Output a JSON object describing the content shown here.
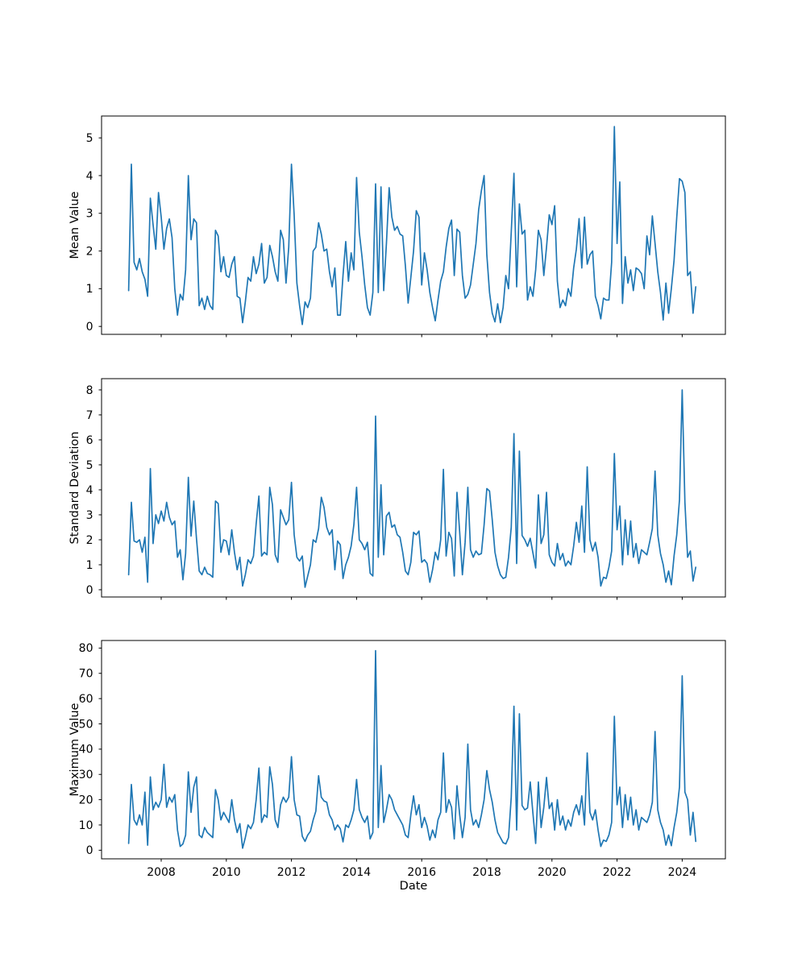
{
  "figure": {
    "background": "#ffffff",
    "line_color": "#1f77b4",
    "axis_color": "#000000",
    "xlabel": "Date"
  },
  "chart_data": [
    {
      "type": "line",
      "id": "mean-value",
      "ylabel": "Mean Value",
      "xlabel": "",
      "legend": "none",
      "grid": false,
      "x_start_year": 2007.0,
      "x_step_years": 0.0833333,
      "xlim_years": [
        2006.168,
        2025.327
      ],
      "ylim": [
        -0.21,
        5.58
      ],
      "y_ticks": [
        0,
        1,
        2,
        3,
        4,
        5
      ],
      "x_tick_years": [
        2008,
        2010,
        2012,
        2014,
        2016,
        2018,
        2020,
        2022,
        2024
      ],
      "show_x_tick_labels": false,
      "values": [
        0.95,
        4.3,
        1.7,
        1.5,
        1.8,
        1.45,
        1.25,
        0.8,
        3.4,
        2.7,
        2.05,
        3.55,
        2.9,
        2.05,
        2.6,
        2.85,
        2.35,
        1.0,
        0.3,
        0.85,
        0.7,
        1.5,
        4.0,
        2.3,
        2.85,
        2.75,
        0.55,
        0.75,
        0.45,
        0.8,
        0.55,
        0.45,
        2.55,
        2.4,
        1.45,
        1.85,
        1.35,
        1.3,
        1.65,
        1.85,
        0.8,
        0.75,
        0.1,
        0.65,
        1.3,
        1.2,
        1.85,
        1.4,
        1.65,
        2.2,
        1.15,
        1.3,
        2.15,
        1.85,
        1.45,
        1.2,
        2.55,
        2.3,
        1.15,
        2.1,
        4.3,
        2.95,
        1.15,
        0.55,
        0.05,
        0.65,
        0.5,
        0.75,
        2.0,
        2.1,
        2.75,
        2.45,
        2.0,
        2.05,
        1.45,
        1.05,
        1.55,
        0.3,
        0.3,
        1.35,
        2.25,
        1.2,
        1.95,
        1.5,
        3.95,
        2.5,
        1.85,
        1.1,
        0.5,
        0.3,
        0.9,
        3.78,
        0.9,
        3.7,
        0.95,
        2.2,
        3.68,
        2.9,
        2.55,
        2.65,
        2.45,
        2.4,
        1.6,
        0.62,
        1.3,
        2.0,
        3.07,
        2.9,
        1.1,
        1.95,
        1.5,
        0.9,
        0.5,
        0.15,
        0.7,
        1.2,
        1.45,
        2.1,
        2.6,
        2.82,
        1.35,
        2.58,
        2.5,
        1.35,
        0.75,
        0.85,
        1.1,
        1.65,
        2.2,
        3.1,
        3.6,
        4.0,
        1.9,
        0.9,
        0.35,
        0.12,
        0.6,
        0.1,
        0.5,
        1.35,
        1.0,
        2.5,
        4.06,
        1.05,
        3.25,
        2.45,
        2.55,
        0.7,
        1.05,
        0.8,
        1.5,
        2.55,
        2.3,
        1.35,
        2.1,
        2.96,
        2.7,
        3.2,
        1.2,
        0.5,
        0.7,
        0.55,
        1.0,
        0.8,
        1.55,
        2.05,
        2.86,
        1.55,
        2.9,
        1.65,
        1.9,
        2.0,
        0.8,
        0.55,
        0.2,
        0.75,
        0.7,
        0.7,
        1.7,
        5.3,
        2.2,
        3.83,
        0.61,
        1.85,
        1.15,
        1.5,
        0.95,
        1.55,
        1.5,
        1.4,
        1.0,
        2.4,
        1.9,
        2.93,
        2.2,
        1.45,
        0.9,
        0.17,
        1.15,
        0.35,
        1.0,
        1.75,
        2.9,
        3.92,
        3.85,
        3.55,
        1.35,
        1.45,
        0.35,
        1.05
      ]
    },
    {
      "type": "line",
      "id": "standard-deviation",
      "ylabel": "Standard Deviation",
      "xlabel": "",
      "legend": "none",
      "grid": false,
      "x_start_year": 2007.0,
      "x_step_years": 0.0833333,
      "xlim_years": [
        2006.168,
        2025.327
      ],
      "ylim": [
        -0.29,
        8.45
      ],
      "y_ticks": [
        0,
        1,
        2,
        3,
        4,
        5,
        6,
        7,
        8
      ],
      "x_tick_years": [
        2008,
        2010,
        2012,
        2014,
        2016,
        2018,
        2020,
        2022,
        2024
      ],
      "show_x_tick_labels": false,
      "values": [
        0.6,
        3.5,
        1.95,
        1.9,
        2.0,
        1.5,
        2.1,
        0.3,
        4.85,
        1.85,
        3.0,
        2.65,
        3.15,
        2.75,
        3.5,
        2.9,
        2.6,
        2.75,
        1.3,
        1.6,
        0.4,
        1.45,
        4.5,
        2.15,
        3.55,
        2.05,
        0.75,
        0.6,
        0.9,
        0.65,
        0.6,
        0.5,
        3.55,
        3.45,
        1.5,
        2.0,
        1.95,
        1.4,
        2.4,
        1.5,
        0.8,
        1.3,
        0.15,
        0.6,
        1.2,
        1.05,
        1.35,
        2.65,
        3.75,
        1.35,
        1.5,
        1.4,
        4.1,
        3.4,
        1.4,
        1.1,
        3.2,
        2.9,
        2.6,
        2.8,
        4.3,
        2.2,
        1.3,
        1.15,
        1.35,
        0.1,
        0.55,
        1.0,
        2.0,
        1.9,
        2.45,
        3.7,
        3.3,
        2.5,
        2.2,
        2.4,
        0.8,
        1.95,
        1.8,
        0.45,
        1.0,
        1.3,
        1.75,
        2.6,
        4.1,
        2.0,
        1.85,
        1.6,
        1.9,
        0.66,
        0.55,
        6.95,
        1.3,
        4.2,
        1.4,
        2.95,
        3.1,
        2.5,
        2.6,
        2.2,
        2.1,
        1.5,
        0.75,
        0.6,
        1.1,
        2.3,
        2.2,
        2.35,
        1.1,
        1.2,
        1.05,
        0.3,
        0.8,
        1.5,
        1.2,
        2.0,
        4.82,
        1.35,
        2.3,
        2.05,
        0.55,
        3.9,
        2.3,
        0.6,
        1.9,
        4.1,
        1.6,
        1.3,
        1.55,
        1.4,
        1.45,
        2.6,
        4.05,
        3.95,
        2.8,
        1.5,
        0.95,
        0.6,
        0.45,
        0.5,
        1.3,
        2.5,
        6.25,
        1.05,
        5.55,
        2.17,
        2.0,
        1.74,
        2.06,
        1.47,
        0.87,
        3.8,
        1.85,
        2.2,
        3.9,
        1.4,
        1.1,
        0.95,
        1.85,
        1.2,
        1.45,
        0.95,
        1.15,
        1.0,
        1.75,
        2.7,
        1.9,
        3.35,
        1.5,
        4.92,
        2.0,
        1.55,
        1.9,
        1.3,
        0.15,
        0.5,
        0.45,
        0.9,
        1.55,
        5.45,
        2.4,
        3.35,
        1.0,
        2.8,
        1.4,
        2.75,
        1.3,
        1.85,
        1.05,
        1.6,
        1.5,
        1.4,
        1.9,
        2.45,
        4.75,
        2.2,
        1.45,
        1.0,
        0.3,
        0.75,
        0.2,
        1.35,
        2.2,
        3.6,
        8.0,
        3.5,
        1.3,
        1.55,
        0.35,
        0.9
      ]
    },
    {
      "type": "line",
      "id": "maximum-value",
      "ylabel": "Maximum Value",
      "xlabel": "Date",
      "legend": "none",
      "grid": false,
      "x_start_year": 2007.0,
      "x_step_years": 0.0833333,
      "xlim_years": [
        2006.168,
        2025.327
      ],
      "ylim": [
        -3.4,
        83.0
      ],
      "y_ticks": [
        0,
        10,
        20,
        30,
        40,
        50,
        60,
        70,
        80
      ],
      "x_tick_years": [
        2008,
        2010,
        2012,
        2014,
        2016,
        2018,
        2020,
        2022,
        2024
      ],
      "show_x_tick_labels": true,
      "values": [
        2.7,
        26,
        12,
        10,
        14,
        10,
        23,
        2,
        29,
        16,
        19,
        17,
        20,
        34,
        17,
        21,
        19,
        22,
        8,
        1.5,
        2.5,
        6,
        31,
        15,
        25,
        29,
        6,
        5,
        9,
        7,
        6,
        5,
        24,
        20,
        12,
        15,
        13,
        11,
        20,
        12,
        7,
        10.5,
        0.8,
        5,
        10,
        8.5,
        11,
        20,
        32.5,
        11,
        14,
        13,
        33,
        26,
        12,
        9,
        18,
        21,
        19,
        21,
        37,
        20,
        14,
        13.5,
        5.5,
        3.5,
        6,
        7.5,
        12,
        15.5,
        29.5,
        21,
        19.5,
        19,
        14,
        12,
        8,
        10,
        8.5,
        3.3,
        10,
        9,
        12,
        16,
        28,
        16,
        13,
        11,
        13.5,
        4.5,
        7,
        79,
        9,
        33.5,
        11,
        16,
        22,
        20,
        16,
        14,
        12,
        10,
        6,
        5,
        14,
        21.5,
        14,
        18,
        9,
        13,
        9.5,
        4,
        8,
        5,
        12,
        15,
        38.5,
        15,
        20,
        17,
        4.5,
        25.5,
        14,
        5,
        13,
        42,
        16,
        10,
        12,
        9,
        14,
        20,
        31.5,
        24,
        19,
        12,
        7,
        5,
        3,
        2.5,
        5,
        21,
        57,
        8,
        54,
        17.7,
        16,
        16.7,
        27,
        14.5,
        2.7,
        27,
        9,
        17,
        28.8,
        16.5,
        18.8,
        8,
        20,
        10,
        13.5,
        8,
        12,
        9.5,
        15,
        18,
        14,
        21.5,
        10,
        38.5,
        15,
        12,
        16,
        8,
        1.5,
        4,
        3.5,
        6,
        11,
        53,
        18,
        25,
        9,
        22,
        12,
        21,
        10,
        16,
        8,
        13,
        12,
        11,
        14,
        19,
        47,
        16,
        11,
        8,
        2,
        6,
        1.8,
        9,
        15,
        25,
        69,
        23,
        20,
        6,
        15,
        3.5
      ]
    }
  ]
}
